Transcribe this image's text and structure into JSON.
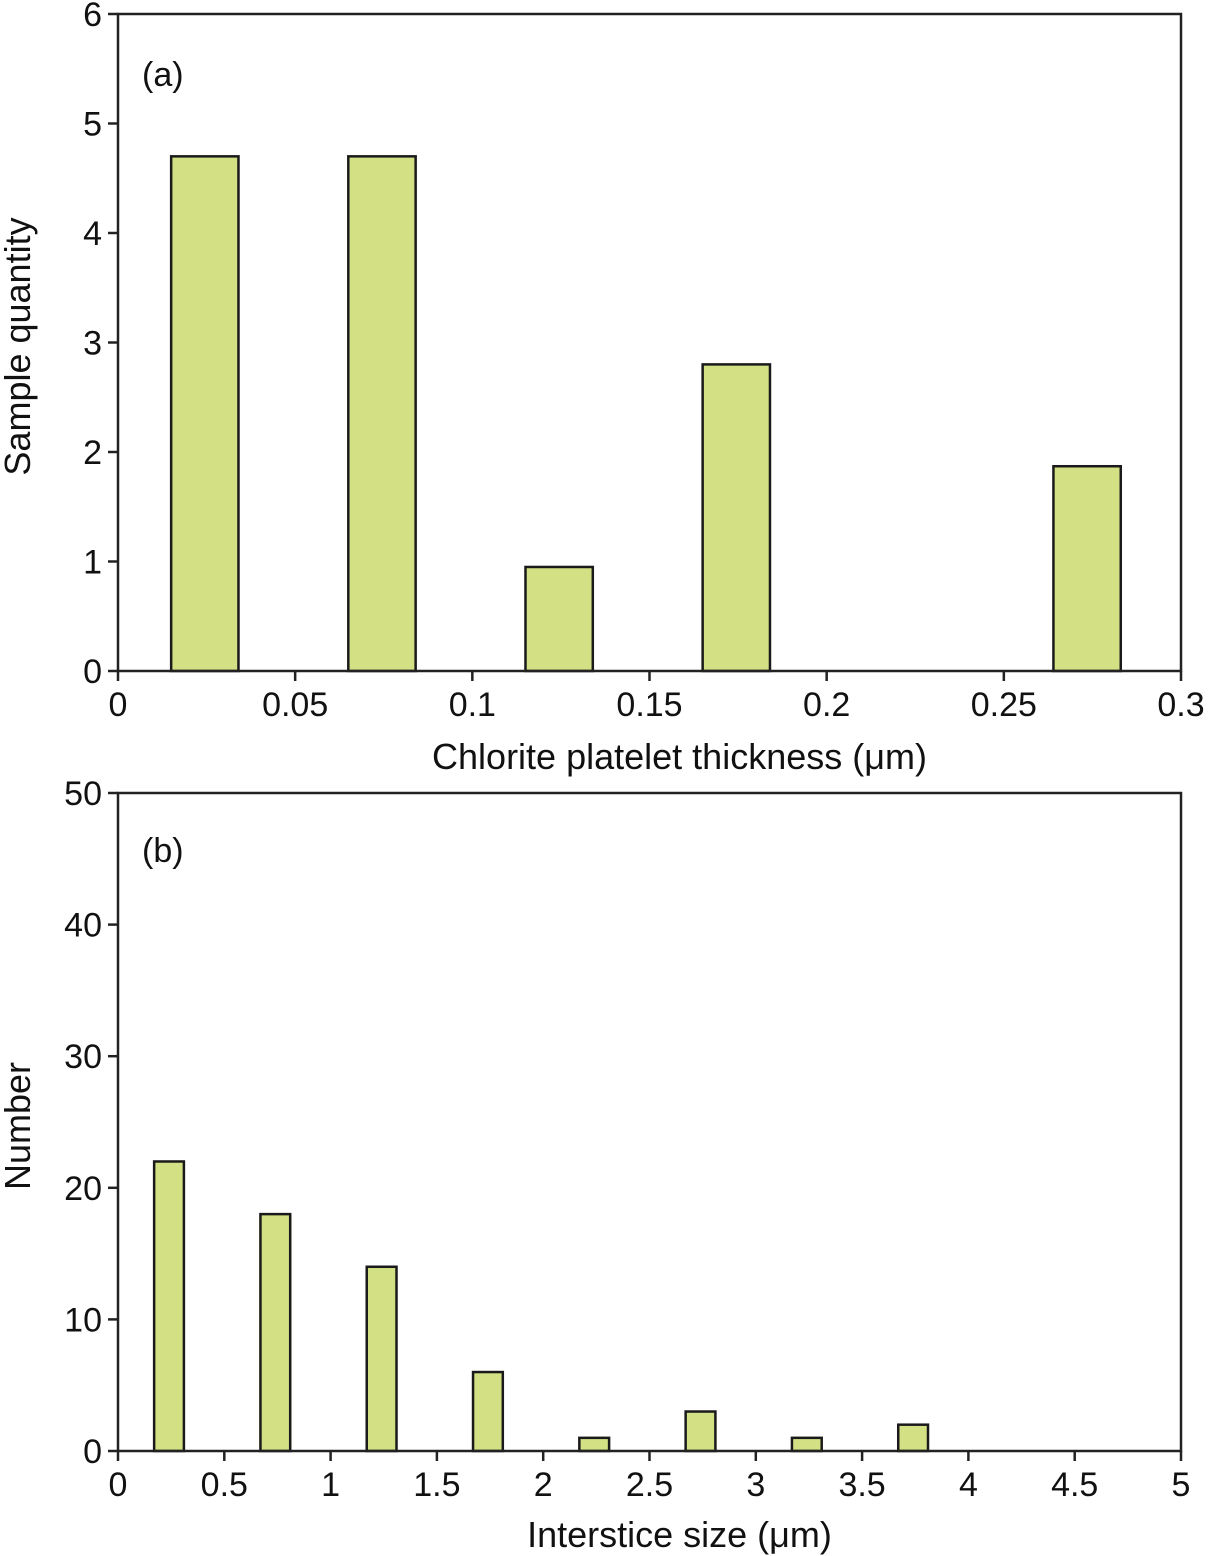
{
  "colors": {
    "bar_fill": "#d3e084",
    "bar_stroke": "#1a1a1a",
    "axis": "#222222"
  },
  "chart_data": [
    {
      "type": "bar",
      "panel_label": "(a)",
      "xlabel": "Chlorite platelet thickness (μm)",
      "ylabel": "Sample quantity",
      "xlim": [
        0,
        0.3
      ],
      "ylim": [
        0,
        6
      ],
      "x_ticks": [
        0,
        0.05,
        0.1,
        0.15,
        0.2,
        0.25,
        0.3
      ],
      "x_tick_labels": [
        "0",
        "0.05",
        "0.1",
        "0.15",
        "0.2",
        "0.25",
        "0.3"
      ],
      "y_ticks": [
        0,
        1,
        2,
        3,
        4,
        5,
        6
      ],
      "y_tick_labels": [
        "0",
        "1",
        "2",
        "3",
        "4",
        "5",
        "6"
      ],
      "bins": [
        {
          "x0": 0.015,
          "x1": 0.034,
          "value": 4.7
        },
        {
          "x0": 0.065,
          "x1": 0.084,
          "value": 4.7
        },
        {
          "x0": 0.115,
          "x1": 0.134,
          "value": 0.95
        },
        {
          "x0": 0.165,
          "x1": 0.184,
          "value": 2.8
        },
        {
          "x0": 0.264,
          "x1": 0.283,
          "value": 1.87
        }
      ]
    },
    {
      "type": "bar",
      "panel_label": "(b)",
      "xlabel": "Interstice size (μm)",
      "ylabel": "Number",
      "xlim": [
        0,
        5
      ],
      "ylim": [
        0,
        50
      ],
      "x_ticks": [
        0,
        0.5,
        1,
        1.5,
        2,
        2.5,
        3,
        3.5,
        4,
        4.5,
        5
      ],
      "x_tick_labels": [
        "0",
        "0.5",
        "1",
        "1.5",
        "2",
        "2.5",
        "3",
        "3.5",
        "4",
        "4.5",
        "5"
      ],
      "y_ticks": [
        0,
        10,
        20,
        30,
        40,
        50
      ],
      "y_tick_labels": [
        "0",
        "10",
        "20",
        "30",
        "40",
        "50"
      ],
      "bins": [
        {
          "x0": 0.17,
          "x1": 0.31,
          "value": 22
        },
        {
          "x0": 0.67,
          "x1": 0.81,
          "value": 18
        },
        {
          "x0": 1.17,
          "x1": 1.31,
          "value": 14
        },
        {
          "x0": 1.67,
          "x1": 1.81,
          "value": 6
        },
        {
          "x0": 2.17,
          "x1": 2.31,
          "value": 1
        },
        {
          "x0": 2.67,
          "x1": 2.81,
          "value": 3
        },
        {
          "x0": 3.17,
          "x1": 3.31,
          "value": 1
        },
        {
          "x0": 3.67,
          "x1": 3.81,
          "value": 2
        }
      ]
    }
  ]
}
